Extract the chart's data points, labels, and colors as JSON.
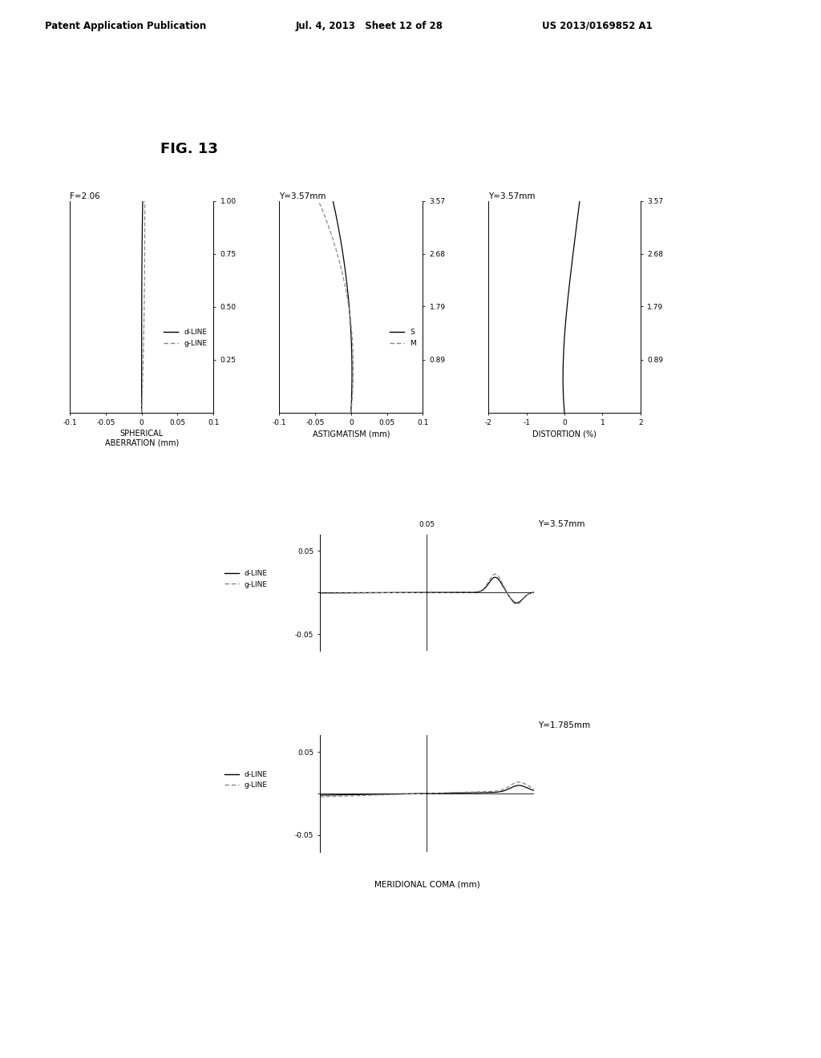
{
  "fig_label": "FIG. 13",
  "header_left": "Patent Application Publication",
  "header_mid": "Jul. 4, 2013   Sheet 12 of 28",
  "header_right": "US 2013/0169852 A1",
  "plot1": {
    "title": "F=2.06",
    "xlabel": "SPHERICAL\nABERRATION (mm)",
    "xlim": [
      -0.1,
      0.1
    ],
    "xticks": [
      -0.1,
      -0.05,
      0,
      0.05,
      0.1
    ],
    "xtick_labels": [
      "-0.1",
      "-0.05",
      "0",
      "0.05",
      "0.1"
    ],
    "yticks": [
      0.25,
      0.5,
      0.75,
      1.0
    ],
    "ytick_labels": [
      "0.25",
      "0.50",
      "0.75",
      "1.00"
    ],
    "ylim": [
      0,
      1.0
    ],
    "legend": [
      "d-LINE",
      "g-LINE"
    ]
  },
  "plot2": {
    "title": "Y=3.57mm",
    "xlabel": "ASTIGMATISM (mm)",
    "xlim": [
      -0.1,
      0.1
    ],
    "xticks": [
      -0.1,
      -0.05,
      0,
      0.05,
      0.1
    ],
    "xtick_labels": [
      "-0.1",
      "-0.05",
      "0",
      "0.05",
      "0.1"
    ],
    "yticks": [
      0.89,
      1.79,
      2.68,
      3.57
    ],
    "ytick_labels": [
      "0.89",
      "1.79",
      "2.68",
      "3.57"
    ],
    "ylim": [
      0,
      3.57
    ],
    "legend": [
      "S",
      "M"
    ]
  },
  "plot3": {
    "title": "Y=3.57mm",
    "xlabel": "DISTORTION (%)",
    "xlim": [
      -2,
      2
    ],
    "xticks": [
      -2,
      -1,
      0,
      1,
      2
    ],
    "xtick_labels": [
      "-2",
      "-1",
      "0",
      "1",
      "2"
    ],
    "yticks": [
      0.89,
      1.79,
      2.68,
      3.57
    ],
    "ytick_labels": [
      "0.89",
      "1.79",
      "2.68",
      "3.57"
    ],
    "ylim": [
      0,
      3.57
    ]
  },
  "plot4": {
    "title": "Y=3.57mm",
    "yticks": [
      -0.05,
      0,
      0.05
    ],
    "ytick_labels": [
      "-0.05",
      "",
      "0.05"
    ],
    "ylim": [
      -0.07,
      0.07
    ],
    "xlim": [
      -0.05,
      0.05
    ],
    "legend": [
      "d-LINE",
      "g-LINE"
    ]
  },
  "plot5": {
    "title": "Y=1.785mm",
    "xlabel": "MERIDIONAL COMA (mm)",
    "yticks": [
      -0.05,
      0,
      0.05
    ],
    "ytick_labels": [
      "-0.05",
      "",
      "0.05"
    ],
    "ylim": [
      -0.07,
      0.07
    ],
    "xlim": [
      -0.05,
      0.05
    ],
    "legend": [
      "d-LINE",
      "g-LINE"
    ]
  },
  "background_color": "#ffffff",
  "line_color_solid": "#000000",
  "line_color_dashed": "#888888"
}
